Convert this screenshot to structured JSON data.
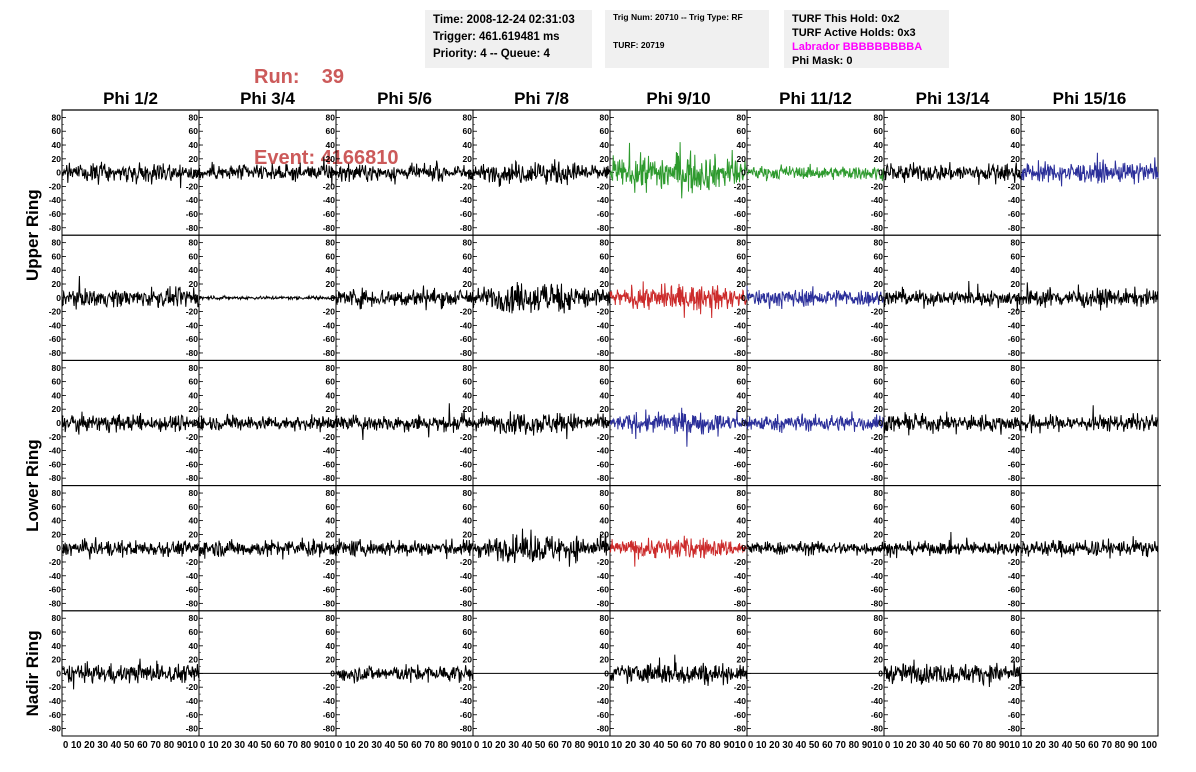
{
  "header": {
    "run_label": "Run:",
    "run_value": "39",
    "event_label": "Event:",
    "event_value": "4166810"
  },
  "info": {
    "time": "Time: 2008-12-24 02:31:03",
    "trigger": "Trigger: 461.619481 ms",
    "priority": "Priority: 4 -- Queue: 4",
    "trig_num": "Trig Num: 20710 -- Trig Type: RF",
    "turf": "TURF: 20719",
    "turf_this_hold": "TURF This Hold: 0x2",
    "turf_active_holds": "TURF Active Holds: 0x3",
    "labrador": "Labrador BBBBBBBBBA",
    "phi_mask": "Phi Mask: 0"
  },
  "colors": {
    "black": "#000000",
    "green": "#2e9a2e",
    "red": "#cc2b2b",
    "blue": "#2b2f9a",
    "run_text": "#cc5a5a",
    "labrador_text": "#ff00ff",
    "info_bg": "#f0f0f0"
  },
  "chart_data": {
    "type": "line",
    "columns": [
      "Phi 1/2",
      "Phi 3/4",
      "Phi 5/6",
      "Phi 7/8",
      "Phi 9/10",
      "Phi 11/12",
      "Phi 13/14",
      "Phi 15/16"
    ],
    "rows": [
      "Upper Ring",
      "Upper Ring",
      "Lower Ring",
      "Lower Ring",
      "Nadir Ring"
    ],
    "row_labels": [
      {
        "text": "Upper Ring",
        "rows": [
          0,
          1
        ]
      },
      {
        "text": "Lower Ring",
        "rows": [
          2,
          3
        ]
      },
      {
        "text": "Nadir Ring",
        "rows": [
          4
        ]
      }
    ],
    "xlim": [
      0,
      100
    ],
    "ylim": [
      -85,
      85
    ],
    "yticks": [
      80,
      60,
      40,
      20,
      0,
      -20,
      -40,
      -60,
      -80
    ],
    "xticks": [
      0,
      10,
      20,
      30,
      40,
      50,
      60,
      70,
      80,
      90,
      100
    ],
    "x_tick_label_strips": [
      "0 10 20 30 40 50 60 70 80 9010",
      "0 10 20 30 40 50 60 70 80 9010",
      "0 10 20 30 40 50 60 70 80 9010",
      "0 10 20 30 40 50 60 70 80 9010",
      "10 20 30 40 50 60 70 80 9010",
      "0 10 20 30 40 50 60 70 80 9010",
      "0 10 20 30 40 50 60 70 80 9010",
      "10 20 30 40 50 60 70 80 90 100"
    ],
    "trace_colors": [
      [
        "black",
        "black",
        "black",
        "black",
        "green",
        "green",
        "black",
        "blue"
      ],
      [
        "black",
        "black",
        "black",
        "black",
        "red",
        "blue",
        "black",
        "black"
      ],
      [
        "black",
        "black",
        "black",
        "black",
        "blue",
        "blue",
        "black",
        "black"
      ],
      [
        "black",
        "black",
        "black",
        "black",
        "red",
        "black",
        "black",
        "black"
      ],
      [
        "black",
        "black",
        "black",
        "black",
        "black",
        "black",
        "black",
        "black"
      ]
    ],
    "trace_amplitude": [
      [
        16,
        14,
        14,
        18,
        30,
        12,
        16,
        18
      ],
      [
        16,
        3,
        17,
        24,
        20,
        16,
        14,
        16
      ],
      [
        15,
        13,
        15,
        17,
        17,
        15,
        15,
        15
      ],
      [
        14,
        15,
        15,
        22,
        17,
        12,
        12,
        15
      ],
      [
        17,
        0,
        15,
        0,
        18,
        0,
        18,
        0
      ]
    ]
  }
}
